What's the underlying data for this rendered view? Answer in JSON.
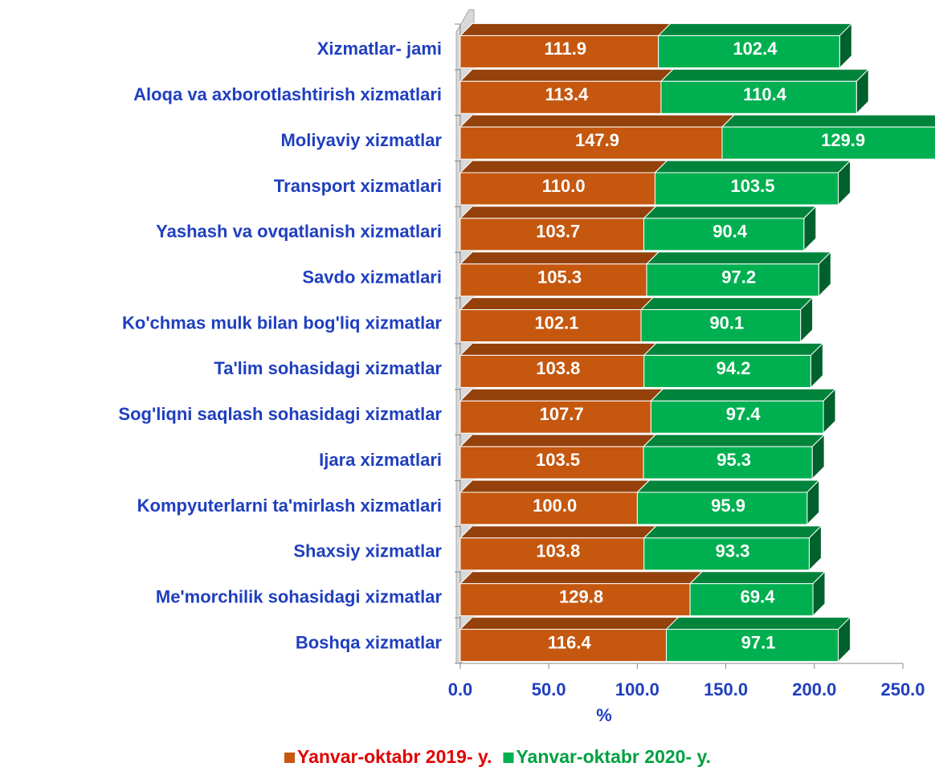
{
  "chart_data": {
    "type": "bar3d_stacked_horizontal",
    "categories": [
      "Xizmatlar- jami",
      "Aloqa va axborotlashtirish xizmatlari",
      "Moliyaviy xizmatlar",
      "Transport xizmatlari",
      "Yashash va ovqatlanish xizmatlari",
      "Savdo xizmatlari",
      "Ko'chmas mulk bilan bog'liq xizmatlar",
      "Ta'lim sohasidagi xizmatlar",
      "Sog'liqni saqlash sohasidagi xizmatlar",
      "Ijara xizmatlari",
      "Kompyuterlarni ta'mirlash xizmatlari",
      "Shaxsiy xizmatlar",
      "Me'morchilik sohasidagi xizmatlar",
      "Boshqa xizmatlar"
    ],
    "series": [
      {
        "name": "Yanvar-oktabr 2019- y.",
        "color": "#c5570f",
        "label_color": "#e00000",
        "values": [
          111.9,
          113.4,
          147.9,
          110.0,
          103.7,
          105.3,
          102.1,
          103.8,
          107.7,
          103.5,
          100.0,
          103.8,
          129.8,
          116.4
        ],
        "value_labels": [
          "111.9",
          "113.4",
          "147.9",
          "110.0",
          "103.7",
          "105.3",
          "102.1",
          "103.8",
          "107.7",
          "103.5",
          "100.0",
          "103.8",
          "129.8",
          "116.4"
        ]
      },
      {
        "name": "Yanvar-oktabr 2020- y.",
        "color": "#00b050",
        "label_color": "#00a040",
        "values": [
          102.4,
          110.4,
          129.9,
          103.5,
          90.4,
          97.2,
          90.1,
          94.2,
          97.4,
          95.3,
          95.9,
          93.3,
          69.4,
          97.1
        ],
        "value_labels": [
          "102.4",
          "110.4",
          "129.9",
          "103.5",
          "90.4",
          "97.2",
          "90.1",
          "94.2",
          "97.4",
          "95.3",
          "95.9",
          "93.3",
          "69.4",
          "97.1"
        ]
      }
    ],
    "xlabel": "%",
    "xlim": [
      0,
      250
    ],
    "xticks": [
      {
        "value": 0,
        "label": "0.0"
      },
      {
        "value": 50,
        "label": "50.0"
      },
      {
        "value": 100,
        "label": "100.0"
      },
      {
        "value": 150,
        "label": "150.0"
      },
      {
        "value": 200,
        "label": "200.0"
      },
      {
        "value": 250,
        "label": "250.0"
      }
    ],
    "legend": "bottom"
  }
}
